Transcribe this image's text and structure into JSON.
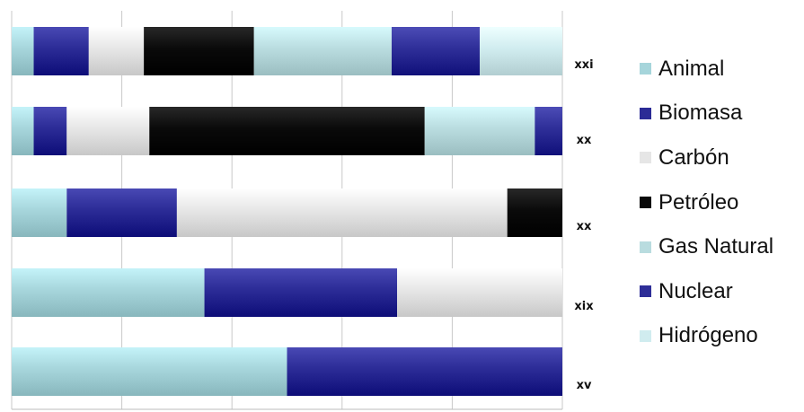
{
  "chart_data": {
    "type": "bar",
    "orientation": "horizontal",
    "stacked": true,
    "normalized_percent": true,
    "categories": [
      "xxi",
      "xx",
      "xx",
      "xix",
      "xv"
    ],
    "series": [
      {
        "name": "Animal",
        "color": "#a6d5db",
        "values": [
          4,
          4,
          10,
          35,
          50
        ]
      },
      {
        "name": "Biomasa",
        "color": "#2b2b96",
        "values": [
          10,
          6,
          20,
          35,
          50
        ]
      },
      {
        "name": "Carbón",
        "color": "#e6e6e6",
        "values": [
          10,
          15,
          60,
          30,
          0
        ]
      },
      {
        "name": "Petróleo",
        "color": "#0a0a0a",
        "values": [
          20,
          50,
          10,
          0,
          0
        ]
      },
      {
        "name": "Gas Natural",
        "color": "#b9dcdf",
        "values": [
          25,
          20,
          0,
          0,
          0
        ]
      },
      {
        "name": "Nuclear",
        "color": "#2e2e98",
        "values": [
          16,
          5,
          0,
          0,
          0
        ]
      },
      {
        "name": "Hidrógeno",
        "color": "#d0ecef",
        "values": [
          15,
          0,
          0,
          0,
          0
        ]
      }
    ],
    "xlim": [
      0,
      100
    ],
    "grid": true,
    "legend_position": "right"
  }
}
